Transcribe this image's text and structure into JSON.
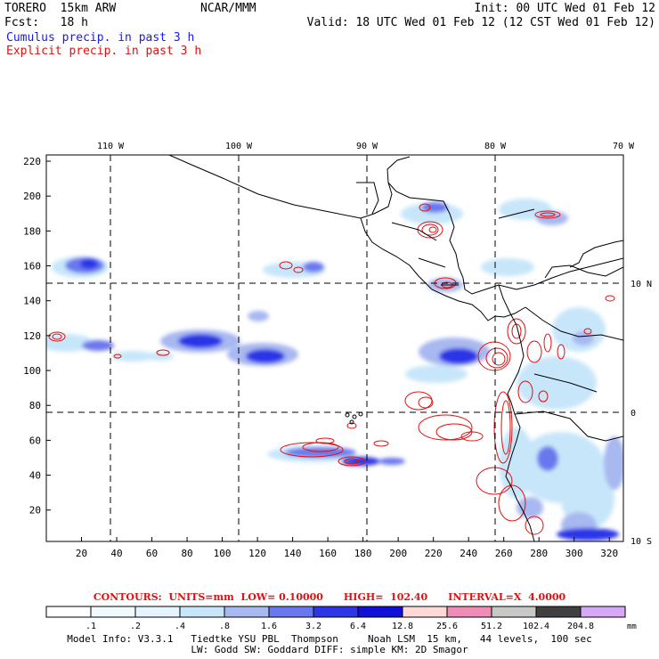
{
  "header": {
    "model": "TORERO  15km ARW",
    "org": "NCAR/MMM",
    "init": "Init: 00 UTC Wed 01 Feb 12",
    "fcst": "Fcst:   18 h",
    "valid": "Valid: 18 UTC Wed 01 Feb 12 (12 CST Wed 01 Feb 12)",
    "field1": "Cumulus precip. in past 3 h",
    "field2": "Explicit precip. in past 3 h",
    "field1_color": "#1a1ae6",
    "field2_color": "#e01010"
  },
  "map": {
    "lon_labels": [
      "110 W",
      "100 W",
      "90 W",
      "80 W",
      "70 W"
    ],
    "lat_labels": [
      "10 N",
      "0",
      "10 S"
    ],
    "y_ticks": [
      "220",
      "200",
      "180",
      "160",
      "140",
      "120",
      "100",
      "80",
      "60",
      "40",
      "20"
    ],
    "x_ticks": [
      "20",
      "40",
      "60",
      "80",
      "100",
      "120",
      "140",
      "160",
      "180",
      "200",
      "220",
      "240",
      "260",
      "280",
      "300",
      "320"
    ]
  },
  "contours": "CONTOURS:  UNITS=mm  LOW= 0.10000      HIGH=  102.40      INTERVAL=X  4.0000",
  "colorbar": {
    "labels": [
      ".1",
      ".2",
      ".4",
      ".8",
      "1.6",
      "3.2",
      "6.4",
      "12.8",
      "25.6",
      "51.2",
      "102.4",
      "204.8"
    ],
    "unit": "mm",
    "colors": [
      "#ffffff",
      "#ffffff",
      "#f0faff",
      "#e4f5ff",
      "#c8e6fa",
      "#a8b8f0",
      "#6a78ee",
      "#2c36e6",
      "#1010d8",
      "#ffd8d8",
      "#f08cb8",
      "#c8c8c8",
      "#404040",
      "#d8a8f8"
    ]
  },
  "footer": {
    "line1": "Model Info: V3.3.1   Tiedtke YSU PBL  Thompson     Noah LSM  15 km,   44 levels,  100 sec",
    "line2": "LW: Godd SW: Goddard DIFF: simple KM: 2D Smagor"
  }
}
